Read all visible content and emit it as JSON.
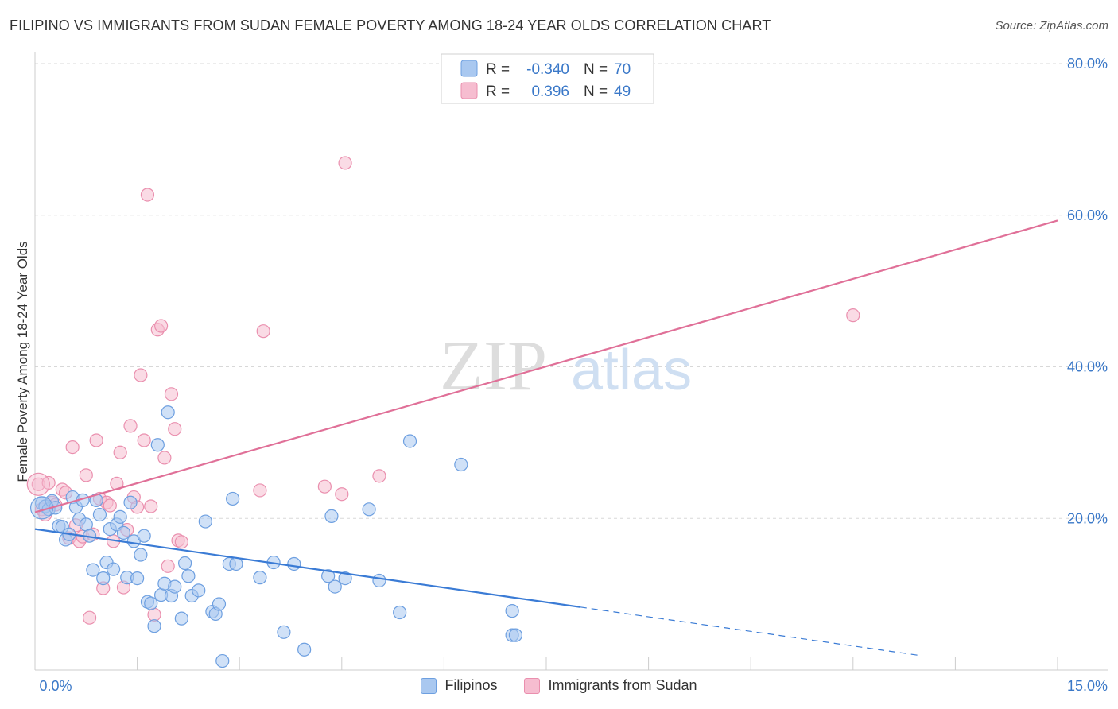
{
  "title": "FILIPINO VS IMMIGRANTS FROM SUDAN FEMALE POVERTY AMONG 18-24 YEAR OLDS CORRELATION CHART",
  "source": "Source: ZipAtlas.com",
  "watermark": {
    "part1": "ZIP",
    "part2": "atlas"
  },
  "colors": {
    "blue_fill": "#a9c8f0",
    "blue_stroke": "#6d9fe0",
    "blue_line": "#3a7bd5",
    "pink_fill": "#f6bdd0",
    "pink_stroke": "#ea8fae",
    "pink_line": "#e07098",
    "axis_text": "#3a78c8",
    "grid": "#d8d8d8"
  },
  "legend_top": [
    {
      "r_label": "R =",
      "r_value": "-0.340",
      "n_label": "N =",
      "n_value": "70"
    },
    {
      "r_label": "R =",
      "r_value": "0.396",
      "n_label": "N =",
      "n_value": "49"
    }
  ],
  "chart_data": {
    "type": "scatter",
    "title": "FILIPINO VS IMMIGRANTS FROM SUDAN FEMALE POVERTY AMONG 18-24 YEAR OLDS CORRELATION CHART",
    "xlabel": "",
    "ylabel": "Female Poverty Among 18-24 Year Olds",
    "xlim": [
      0,
      15
    ],
    "ylim": [
      0,
      80
    ],
    "x_tick_labels": [
      "0.0%",
      "15.0%"
    ],
    "y_tick_values": [
      20,
      40,
      60,
      80
    ],
    "y_tick_labels": [
      "20.0%",
      "40.0%",
      "60.0%",
      "80.0%"
    ],
    "grid": true,
    "legend_placement": "top-center",
    "series": [
      {
        "name": "Filipinos",
        "r": -0.34,
        "n": 70,
        "trend": {
          "x0": 0,
          "y0": 18.6,
          "x1": 8.0,
          "y1": 8.3,
          "dash_to_x": 13.0,
          "dash_to_y": 1.9
        },
        "points": [
          [
            0.1,
            22.0
          ],
          [
            0.15,
            21.6
          ],
          [
            0.2,
            21.2
          ],
          [
            0.25,
            22.3
          ],
          [
            0.3,
            21.4
          ],
          [
            0.35,
            19.0
          ],
          [
            0.4,
            18.9
          ],
          [
            0.45,
            17.2
          ],
          [
            0.5,
            17.9
          ],
          [
            0.55,
            22.8
          ],
          [
            0.6,
            21.5
          ],
          [
            0.65,
            19.9
          ],
          [
            0.7,
            22.4
          ],
          [
            0.75,
            19.2
          ],
          [
            0.8,
            17.7
          ],
          [
            0.85,
            13.2
          ],
          [
            0.9,
            22.4
          ],
          [
            0.95,
            20.5
          ],
          [
            1.0,
            12.1
          ],
          [
            1.05,
            14.2
          ],
          [
            1.1,
            18.6
          ],
          [
            1.15,
            13.3
          ],
          [
            1.2,
            19.2
          ],
          [
            1.25,
            20.2
          ],
          [
            1.3,
            18.1
          ],
          [
            1.35,
            12.2
          ],
          [
            1.4,
            22.1
          ],
          [
            1.45,
            17.0
          ],
          [
            1.5,
            12.1
          ],
          [
            1.55,
            15.2
          ],
          [
            1.6,
            17.7
          ],
          [
            1.65,
            9.0
          ],
          [
            1.7,
            8.8
          ],
          [
            1.75,
            5.8
          ],
          [
            1.8,
            29.7
          ],
          [
            1.85,
            9.9
          ],
          [
            1.9,
            11.4
          ],
          [
            1.95,
            34.0
          ],
          [
            2.0,
            9.8
          ],
          [
            2.05,
            11.0
          ],
          [
            2.15,
            6.8
          ],
          [
            2.2,
            14.1
          ],
          [
            2.25,
            12.4
          ],
          [
            2.3,
            9.8
          ],
          [
            2.4,
            10.5
          ],
          [
            2.5,
            19.6
          ],
          [
            2.6,
            7.7
          ],
          [
            2.65,
            7.4
          ],
          [
            2.7,
            8.7
          ],
          [
            2.75,
            1.2
          ],
          [
            2.85,
            14.0
          ],
          [
            2.9,
            22.6
          ],
          [
            2.95,
            14.0
          ],
          [
            3.3,
            12.2
          ],
          [
            3.5,
            14.2
          ],
          [
            3.65,
            5.0
          ],
          [
            3.8,
            14.0
          ],
          [
            3.95,
            2.7
          ],
          [
            4.3,
            12.4
          ],
          [
            4.35,
            20.3
          ],
          [
            4.4,
            11.0
          ],
          [
            4.55,
            12.1
          ],
          [
            4.9,
            21.2
          ],
          [
            5.05,
            11.8
          ],
          [
            5.35,
            7.6
          ],
          [
            5.5,
            30.2
          ],
          [
            6.25,
            27.1
          ],
          [
            7.0,
            4.6
          ],
          [
            7.05,
            4.6
          ],
          [
            7.0,
            7.8
          ]
        ]
      },
      {
        "name": "Immigrants from Sudan",
        "r": 0.396,
        "n": 49,
        "trend": {
          "x0": 0,
          "y0": 20.8,
          "x1": 15.0,
          "y1": 59.3
        },
        "points": [
          [
            0.05,
            24.5
          ],
          [
            0.1,
            21.2
          ],
          [
            0.15,
            20.5
          ],
          [
            0.2,
            24.7
          ],
          [
            0.25,
            22.1
          ],
          [
            0.3,
            21.8
          ],
          [
            0.4,
            23.8
          ],
          [
            0.45,
            23.4
          ],
          [
            0.5,
            17.4
          ],
          [
            0.55,
            29.4
          ],
          [
            0.6,
            19.1
          ],
          [
            0.65,
            17.0
          ],
          [
            0.7,
            17.6
          ],
          [
            0.75,
            25.7
          ],
          [
            0.8,
            6.9
          ],
          [
            0.85,
            17.9
          ],
          [
            0.9,
            30.3
          ],
          [
            0.95,
            22.6
          ],
          [
            1.0,
            10.8
          ],
          [
            1.05,
            22.1
          ],
          [
            1.1,
            21.7
          ],
          [
            1.15,
            17.0
          ],
          [
            1.2,
            24.6
          ],
          [
            1.25,
            28.7
          ],
          [
            1.3,
            10.9
          ],
          [
            1.35,
            18.5
          ],
          [
            1.4,
            32.2
          ],
          [
            1.45,
            22.8
          ],
          [
            1.5,
            21.5
          ],
          [
            1.55,
            38.9
          ],
          [
            1.6,
            30.3
          ],
          [
            1.65,
            62.7
          ],
          [
            1.7,
            21.6
          ],
          [
            1.75,
            7.3
          ],
          [
            1.8,
            44.9
          ],
          [
            1.85,
            45.4
          ],
          [
            1.9,
            28.0
          ],
          [
            1.95,
            13.7
          ],
          [
            2.0,
            36.4
          ],
          [
            2.05,
            31.8
          ],
          [
            2.1,
            17.1
          ],
          [
            2.15,
            16.9
          ],
          [
            3.3,
            23.7
          ],
          [
            3.35,
            44.7
          ],
          [
            4.25,
            24.2
          ],
          [
            4.5,
            23.2
          ],
          [
            4.55,
            66.9
          ],
          [
            5.05,
            25.6
          ],
          [
            12.0,
            46.8
          ]
        ]
      }
    ]
  },
  "legend_bottom": [
    {
      "label": "Filipinos"
    },
    {
      "label": "Immigrants from Sudan"
    }
  ]
}
